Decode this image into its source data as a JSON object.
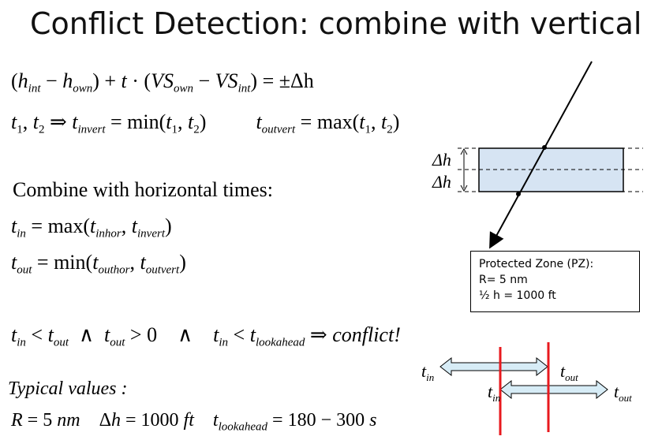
{
  "title": "Conflict Detection: combine with vertical",
  "eq1": {
    "h_int_sub": "int",
    "h_own_sub": "own",
    "vs_own_sub": "own",
    "vs_int_sub": "int",
    "rhs": "= ±Δh"
  },
  "eq2": {
    "invert_sub": "invert",
    "outvert_sub": "outvert",
    "min": "min",
    "max": "max"
  },
  "combine_text": "Combine with horizontal times:",
  "eq3": {
    "in_sub": "in",
    "inhor_sub": "inhor",
    "invert_sub": "invert",
    "max": "max"
  },
  "eq4": {
    "out_sub": "out",
    "outhor_sub": "outhor",
    "outvert_sub": "outvert",
    "min": "min"
  },
  "condition": {
    "lookahead_sub": "lookahead",
    "result": "conflict!"
  },
  "typical": {
    "heading": "Typical values :",
    "values": "R = 5 nm    Δh = 1000 ft    t",
    "lookahead_sub": "lookahead",
    "range": "= 180 − 300 s"
  },
  "diagram": {
    "dh_label": "Δh",
    "pz_box": {
      "line1": "Protected Zone (PZ):",
      "line2": "R= 5 nm",
      "line3": "½ h = 1000 ft"
    },
    "colors": {
      "zone_fill": "#d6e4f3",
      "arrow_fill": "#d7ecf6",
      "red_line": "#e8191e"
    }
  },
  "timeline": {
    "t": "t",
    "in_sub": "in",
    "out_sub": "out"
  }
}
